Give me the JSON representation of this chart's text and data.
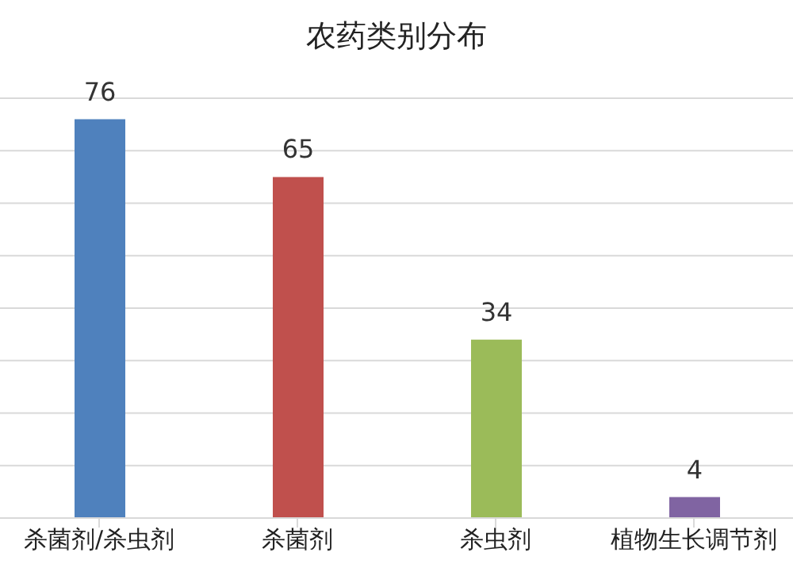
{
  "chart_data": {
    "type": "bar",
    "title": "农药类别分布",
    "categories": [
      "杀菌剂/杀虫剂",
      "杀菌剂",
      "杀虫剂",
      "植物生长调节剂"
    ],
    "values": [
      76,
      65,
      34,
      4
    ],
    "colors": [
      "#4f81bd",
      "#c0504d",
      "#9bbb59",
      "#8064a2"
    ],
    "ylim": [
      0,
      80
    ],
    "yticks": [
      {
        "value": 0,
        "label": null
      },
      {
        "value": 10,
        "label": null
      },
      {
        "value": 20,
        "label": null
      },
      {
        "value": 30,
        "label": null
      },
      {
        "value": 40,
        "label": null
      },
      {
        "value": 50,
        "label": null
      },
      {
        "value": 60,
        "label": null
      },
      {
        "value": 70,
        "label": null
      },
      {
        "value": 80,
        "label": null
      }
    ],
    "grid": "y",
    "tick_labels": "x",
    "data_labels": true
  }
}
